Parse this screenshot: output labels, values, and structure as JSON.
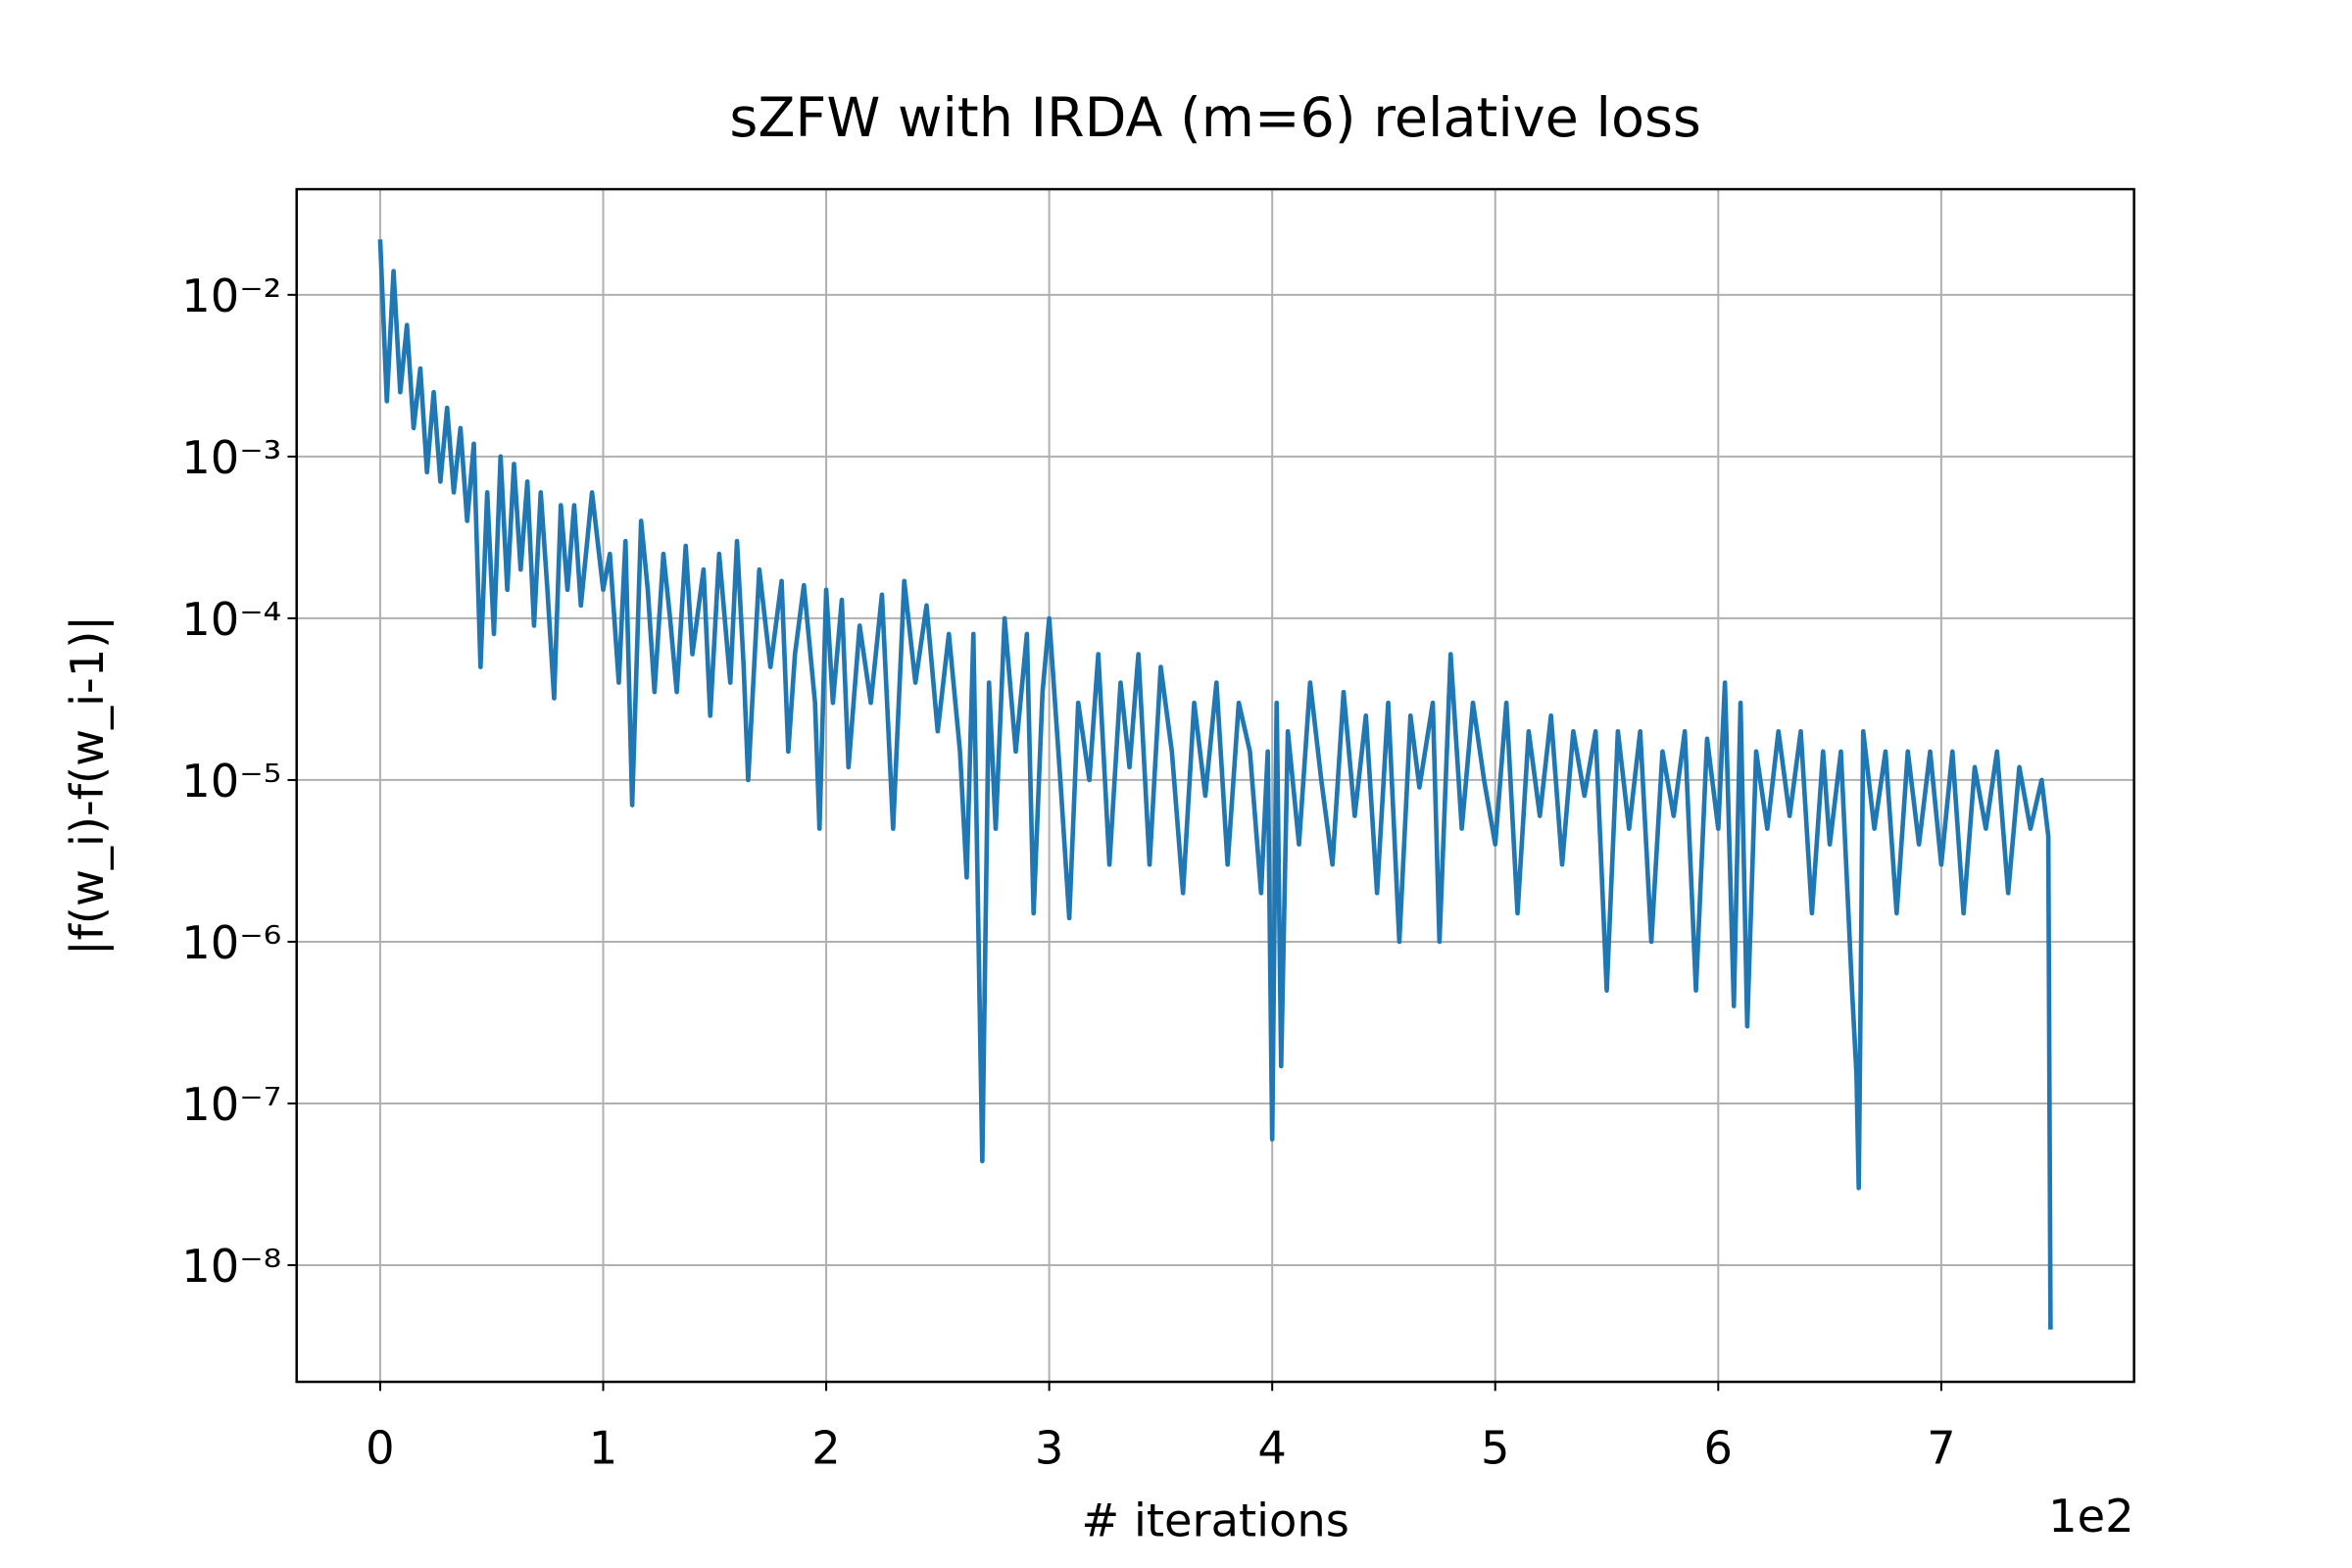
{
  "chart_data": {
    "type": "line",
    "title": "sZFW with IRDA (m=6) relative loss",
    "x_label": "# iterations",
    "y_label": "|f(w_i)-f(w_i-1)|",
    "x_offset_label": "1e2",
    "color": "#1f77b4",
    "grid": true,
    "y_scale": "log",
    "xlim": [
      -0.3745,
      7.8645
    ],
    "ylim": [
      1.9e-09,
      0.045
    ],
    "xticks": [
      0,
      1,
      2,
      3,
      4,
      5,
      6,
      7
    ],
    "yticks": [
      {
        "value": 1e-08,
        "label": "10⁻⁸"
      },
      {
        "value": 1e-07,
        "label": "10⁻⁷"
      },
      {
        "value": 1e-06,
        "label": "10⁻⁶"
      },
      {
        "value": 1e-05,
        "label": "10⁻⁵"
      },
      {
        "value": 0.0001,
        "label": "10⁻⁴"
      },
      {
        "value": 0.001,
        "label": "10⁻³"
      },
      {
        "value": 0.01,
        "label": "10⁻²"
      }
    ],
    "x": [
      0,
      0.03,
      0.06,
      0.09,
      0.12,
      0.15,
      0.18,
      0.21,
      0.24,
      0.27,
      0.3,
      0.33,
      0.36,
      0.39,
      0.42,
      0.45,
      0.48,
      0.51,
      0.54,
      0.57,
      0.6,
      0.63,
      0.66,
      0.69,
      0.72,
      0.75,
      0.78,
      0.81,
      0.84,
      0.87,
      0.9,
      0.95,
      1.0,
      1.03,
      1.07,
      1.1,
      1.13,
      1.17,
      1.2,
      1.23,
      1.27,
      1.3,
      1.33,
      1.37,
      1.4,
      1.45,
      1.48,
      1.52,
      1.57,
      1.6,
      1.63,
      1.65,
      1.7,
      1.75,
      1.8,
      1.83,
      1.86,
      1.9,
      1.95,
      1.97,
      2.0,
      2.03,
      2.07,
      2.1,
      2.15,
      2.2,
      2.25,
      2.3,
      2.35,
      2.4,
      2.45,
      2.5,
      2.55,
      2.6,
      2.63,
      2.66,
      2.7,
      2.73,
      2.76,
      2.8,
      2.85,
      2.9,
      2.93,
      2.97,
      3.0,
      3.05,
      3.09,
      3.13,
      3.18,
      3.22,
      3.27,
      3.32,
      3.36,
      3.4,
      3.45,
      3.5,
      3.55,
      3.6,
      3.65,
      3.7,
      3.75,
      3.8,
      3.85,
      3.9,
      3.95,
      3.98,
      4.0,
      4.02,
      4.04,
      4.07,
      4.12,
      4.17,
      4.22,
      4.27,
      4.32,
      4.37,
      4.42,
      4.47,
      4.52,
      4.57,
      4.62,
      4.66,
      4.72,
      4.75,
      4.8,
      4.85,
      4.9,
      4.95,
      5.0,
      5.05,
      5.1,
      5.15,
      5.2,
      5.25,
      5.3,
      5.35,
      5.4,
      5.45,
      5.5,
      5.55,
      5.6,
      5.65,
      5.7,
      5.75,
      5.8,
      5.85,
      5.9,
      5.95,
      6.0,
      6.03,
      6.07,
      6.1,
      6.13,
      6.17,
      6.22,
      6.27,
      6.32,
      6.37,
      6.42,
      6.47,
      6.5,
      6.55,
      6.6,
      6.62,
      6.63,
      6.65,
      6.7,
      6.75,
      6.8,
      6.85,
      6.9,
      6.95,
      7.0,
      7.05,
      7.1,
      7.15,
      7.2,
      7.25,
      7.3,
      7.35,
      7.4,
      7.45,
      7.48,
      7.49
    ],
    "values": [
      0.022,
      0.0022,
      0.014,
      0.0025,
      0.0065,
      0.0015,
      0.0035,
      0.0008,
      0.0025,
      0.0007,
      0.002,
      0.0006,
      0.0015,
      0.0004,
      0.0012,
      5e-05,
      0.0006,
      8e-05,
      0.001,
      0.00015,
      0.0009,
      0.0002,
      0.0007,
      9e-05,
      0.0006,
      0.00015,
      3.2e-05,
      0.0005,
      0.00015,
      0.0005,
      0.00012,
      0.0006,
      0.00015,
      0.00025,
      4e-05,
      0.0003,
      7e-06,
      0.0004,
      0.00015,
      3.5e-05,
      0.00025,
      0.0001,
      3.5e-05,
      0.00028,
      6e-05,
      0.0002,
      2.5e-05,
      0.00025,
      4e-05,
      0.0003,
      5e-05,
      1e-05,
      0.0002,
      5e-05,
      0.00017,
      1.5e-05,
      6e-05,
      0.00016,
      3e-05,
      5e-06,
      0.00015,
      3e-05,
      0.00013,
      1.2e-05,
      9e-05,
      3e-05,
      0.00014,
      5e-06,
      0.00017,
      4e-05,
      0.00012,
      2e-05,
      8e-05,
      1.5e-05,
      2.5e-06,
      8e-05,
      4.4e-08,
      4e-05,
      5e-06,
      0.0001,
      1.5e-05,
      8e-05,
      1.5e-06,
      3.5e-05,
      0.0001,
      1e-05,
      1.4e-06,
      3e-05,
      1e-05,
      6e-05,
      3e-06,
      4e-05,
      1.2e-05,
      6e-05,
      3e-06,
      5e-05,
      1.5e-05,
      2e-06,
      3e-05,
      8e-06,
      4e-05,
      3e-06,
      3e-05,
      1.5e-05,
      2e-06,
      1.5e-05,
      6e-08,
      3e-05,
      1.7e-07,
      2e-05,
      4e-06,
      4e-05,
      1e-05,
      3e-06,
      3.5e-05,
      6e-06,
      2.5e-05,
      2e-06,
      3e-05,
      1e-06,
      2.5e-05,
      9e-06,
      3e-05,
      1e-06,
      6e-05,
      5e-06,
      3e-05,
      1e-05,
      4e-06,
      3e-05,
      1.5e-06,
      2e-05,
      6e-06,
      2.5e-05,
      3e-06,
      2e-05,
      8e-06,
      2e-05,
      5e-07,
      2e-05,
      5e-06,
      2e-05,
      1e-06,
      1.5e-05,
      6e-06,
      2e-05,
      5e-07,
      1.8e-05,
      5e-06,
      4e-05,
      4e-07,
      3e-05,
      3e-07,
      1.5e-05,
      5e-06,
      2e-05,
      6e-06,
      2e-05,
      1.5e-06,
      1.5e-05,
      4e-06,
      1.5e-05,
      5e-07,
      1.5e-07,
      3e-08,
      2e-05,
      5e-06,
      1.5e-05,
      1.5e-06,
      1.5e-05,
      4e-06,
      1.5e-05,
      3e-06,
      1.5e-05,
      1.5e-06,
      1.2e-05,
      5e-06,
      1.5e-05,
      2e-06,
      1.2e-05,
      5e-06,
      1e-05,
      4.5e-06,
      4e-09
    ]
  }
}
